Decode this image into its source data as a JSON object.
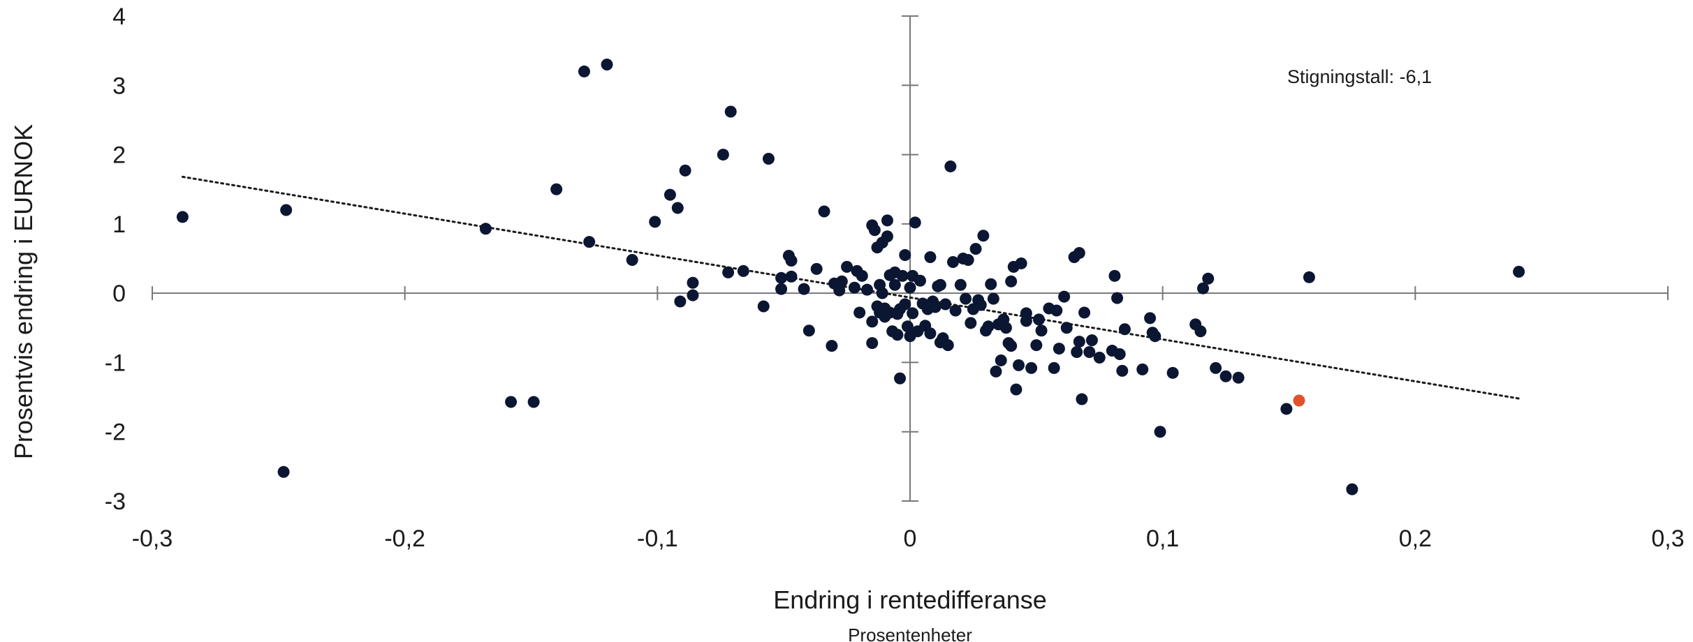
{
  "chart_data": {
    "type": "scatter",
    "title": "",
    "xlabel": "Endring i rentedifferanse",
    "xlabel_sub": "Prosentenheter",
    "ylabel": "Prosentvis endring i EURNOK",
    "xlim": [
      -0.3,
      0.3
    ],
    "ylim": [
      -3,
      4
    ],
    "xticks": [
      -0.3,
      -0.2,
      -0.1,
      0,
      0.1,
      0.2,
      0.3
    ],
    "xtick_labels": [
      "-0,3",
      "-0,2",
      "-0,1",
      "0",
      "0,1",
      "0,2",
      "0,3"
    ],
    "yticks": [
      -3,
      -2,
      -1,
      0,
      1,
      2,
      3,
      4
    ],
    "ytick_labels": [
      "-3",
      "-2",
      "-1",
      "0",
      "1",
      "2",
      "3",
      "4"
    ],
    "grid": false,
    "annotation": "Stigningstall: -6,1",
    "colors": {
      "points": "#0b1633",
      "highlight": "#e0532a",
      "axis": "#777777",
      "trend": "#1a1a1a"
    },
    "trendline": {
      "style": "dotted",
      "x": [
        -0.288,
        0.241
      ],
      "y": [
        1.68,
        -1.52
      ]
    },
    "highlight_point": {
      "x": 0.154,
      "y": -1.55
    },
    "points": [
      {
        "x": -0.288,
        "y": 1.1
      },
      {
        "x": -0.247,
        "y": 1.2
      },
      {
        "x": -0.248,
        "y": -2.58
      },
      {
        "x": -0.168,
        "y": 0.93
      },
      {
        "x": -0.158,
        "y": -1.57
      },
      {
        "x": -0.149,
        "y": -1.57
      },
      {
        "x": -0.14,
        "y": 1.5
      },
      {
        "x": -0.129,
        "y": 3.2
      },
      {
        "x": -0.127,
        "y": 0.74
      },
      {
        "x": -0.12,
        "y": 3.3
      },
      {
        "x": -0.11,
        "y": 0.48
      },
      {
        "x": -0.101,
        "y": 1.03
      },
      {
        "x": -0.095,
        "y": 1.42
      },
      {
        "x": -0.092,
        "y": 1.23
      },
      {
        "x": -0.091,
        "y": -0.12
      },
      {
        "x": -0.089,
        "y": 1.77
      },
      {
        "x": -0.086,
        "y": 0.15
      },
      {
        "x": -0.086,
        "y": -0.03
      },
      {
        "x": -0.074,
        "y": 2.0
      },
      {
        "x": -0.072,
        "y": 0.3
      },
      {
        "x": -0.071,
        "y": 2.62
      },
      {
        "x": -0.066,
        "y": 0.32
      },
      {
        "x": -0.058,
        "y": -0.19
      },
      {
        "x": -0.056,
        "y": 1.94
      },
      {
        "x": -0.051,
        "y": 0.22
      },
      {
        "x": -0.051,
        "y": 0.06
      },
      {
        "x": -0.048,
        "y": 0.54
      },
      {
        "x": -0.047,
        "y": 0.47
      },
      {
        "x": -0.047,
        "y": 0.24
      },
      {
        "x": -0.042,
        "y": 0.06
      },
      {
        "x": -0.04,
        "y": -0.54
      },
      {
        "x": -0.037,
        "y": 0.35
      },
      {
        "x": -0.034,
        "y": 1.18
      },
      {
        "x": -0.031,
        "y": -0.76
      },
      {
        "x": -0.03,
        "y": 0.14
      },
      {
        "x": -0.028,
        "y": 0.04
      },
      {
        "x": -0.027,
        "y": 0.17
      },
      {
        "x": -0.025,
        "y": 0.38
      },
      {
        "x": -0.022,
        "y": 0.08
      },
      {
        "x": -0.021,
        "y": 0.32
      },
      {
        "x": -0.02,
        "y": -0.28
      },
      {
        "x": -0.019,
        "y": 0.25
      },
      {
        "x": -0.017,
        "y": 0.05
      },
      {
        "x": -0.015,
        "y": 0.98
      },
      {
        "x": -0.015,
        "y": -0.72
      },
      {
        "x": -0.015,
        "y": -0.41
      },
      {
        "x": -0.014,
        "y": 0.91
      },
      {
        "x": -0.013,
        "y": 0.66
      },
      {
        "x": -0.013,
        "y": -0.19
      },
      {
        "x": -0.012,
        "y": 0.12
      },
      {
        "x": -0.012,
        "y": -0.28
      },
      {
        "x": -0.011,
        "y": 0.73
      },
      {
        "x": -0.011,
        "y": 0.0
      },
      {
        "x": -0.01,
        "y": -0.34
      },
      {
        "x": -0.01,
        "y": -0.22
      },
      {
        "x": -0.009,
        "y": 0.82
      },
      {
        "x": -0.009,
        "y": 1.05
      },
      {
        "x": -0.008,
        "y": 0.26
      },
      {
        "x": -0.008,
        "y": -0.28
      },
      {
        "x": -0.007,
        "y": -0.55
      },
      {
        "x": -0.006,
        "y": 0.3
      },
      {
        "x": -0.006,
        "y": 0.12
      },
      {
        "x": -0.005,
        "y": -0.3
      },
      {
        "x": -0.005,
        "y": -0.6
      },
      {
        "x": -0.004,
        "y": -1.23
      },
      {
        "x": -0.004,
        "y": -0.23
      },
      {
        "x": -0.003,
        "y": 0.25
      },
      {
        "x": -0.002,
        "y": -0.16
      },
      {
        "x": -0.002,
        "y": 0.55
      },
      {
        "x": -0.001,
        "y": -0.48
      },
      {
        "x": 0.0,
        "y": 0.08
      },
      {
        "x": 0.0,
        "y": -0.62
      },
      {
        "x": 0.001,
        "y": -0.29
      },
      {
        "x": 0.001,
        "y": 0.25
      },
      {
        "x": 0.002,
        "y": 1.02
      },
      {
        "x": 0.003,
        "y": -0.55
      },
      {
        "x": 0.004,
        "y": 0.18
      },
      {
        "x": 0.005,
        "y": -0.15
      },
      {
        "x": 0.006,
        "y": -0.47
      },
      {
        "x": 0.007,
        "y": -0.23
      },
      {
        "x": 0.008,
        "y": 0.52
      },
      {
        "x": 0.008,
        "y": -0.58
      },
      {
        "x": 0.009,
        "y": -0.12
      },
      {
        "x": 0.01,
        "y": -0.2
      },
      {
        "x": 0.011,
        "y": 0.1
      },
      {
        "x": 0.012,
        "y": 0.12
      },
      {
        "x": 0.012,
        "y": -0.71
      },
      {
        "x": 0.013,
        "y": -0.65
      },
      {
        "x": 0.014,
        "y": -0.16
      },
      {
        "x": 0.015,
        "y": -0.75
      },
      {
        "x": 0.016,
        "y": 1.83
      },
      {
        "x": 0.017,
        "y": 0.45
      },
      {
        "x": 0.018,
        "y": -0.25
      },
      {
        "x": 0.02,
        "y": 0.12
      },
      {
        "x": 0.021,
        "y": 0.5
      },
      {
        "x": 0.022,
        "y": -0.08
      },
      {
        "x": 0.023,
        "y": 0.48
      },
      {
        "x": 0.024,
        "y": -0.43
      },
      {
        "x": 0.025,
        "y": -0.23
      },
      {
        "x": 0.026,
        "y": 0.64
      },
      {
        "x": 0.027,
        "y": -0.1
      },
      {
        "x": 0.028,
        "y": -0.17
      },
      {
        "x": 0.029,
        "y": 0.83
      },
      {
        "x": 0.03,
        "y": -0.54
      },
      {
        "x": 0.031,
        "y": -0.48
      },
      {
        "x": 0.032,
        "y": 0.13
      },
      {
        "x": 0.033,
        "y": -0.08
      },
      {
        "x": 0.034,
        "y": -1.13
      },
      {
        "x": 0.035,
        "y": -0.45
      },
      {
        "x": 0.036,
        "y": -0.97
      },
      {
        "x": 0.037,
        "y": -0.38
      },
      {
        "x": 0.038,
        "y": -0.5
      },
      {
        "x": 0.039,
        "y": -0.72
      },
      {
        "x": 0.04,
        "y": -0.76
      },
      {
        "x": 0.04,
        "y": 0.17
      },
      {
        "x": 0.041,
        "y": 0.38
      },
      {
        "x": 0.042,
        "y": -1.39
      },
      {
        "x": 0.043,
        "y": -1.04
      },
      {
        "x": 0.044,
        "y": 0.43
      },
      {
        "x": 0.046,
        "y": -0.29
      },
      {
        "x": 0.046,
        "y": -0.4
      },
      {
        "x": 0.048,
        "y": -1.08
      },
      {
        "x": 0.05,
        "y": -0.75
      },
      {
        "x": 0.051,
        "y": -0.38
      },
      {
        "x": 0.052,
        "y": -0.54
      },
      {
        "x": 0.055,
        "y": -0.22
      },
      {
        "x": 0.057,
        "y": -1.08
      },
      {
        "x": 0.058,
        "y": -0.25
      },
      {
        "x": 0.059,
        "y": -0.8
      },
      {
        "x": 0.061,
        "y": -0.05
      },
      {
        "x": 0.062,
        "y": -0.5
      },
      {
        "x": 0.065,
        "y": 0.52
      },
      {
        "x": 0.066,
        "y": -0.85
      },
      {
        "x": 0.067,
        "y": 0.58
      },
      {
        "x": 0.067,
        "y": -0.7
      },
      {
        "x": 0.068,
        "y": -1.53
      },
      {
        "x": 0.069,
        "y": -0.28
      },
      {
        "x": 0.071,
        "y": -0.85
      },
      {
        "x": 0.072,
        "y": -0.68
      },
      {
        "x": 0.075,
        "y": -0.93
      },
      {
        "x": 0.08,
        "y": -0.83
      },
      {
        "x": 0.081,
        "y": 0.25
      },
      {
        "x": 0.082,
        "y": -0.07
      },
      {
        "x": 0.083,
        "y": -0.88
      },
      {
        "x": 0.084,
        "y": -1.12
      },
      {
        "x": 0.085,
        "y": -0.52
      },
      {
        "x": 0.092,
        "y": -1.1
      },
      {
        "x": 0.095,
        "y": -0.36
      },
      {
        "x": 0.096,
        "y": -0.57
      },
      {
        "x": 0.097,
        "y": -0.62
      },
      {
        "x": 0.099,
        "y": -2.0
      },
      {
        "x": 0.104,
        "y": -1.15
      },
      {
        "x": 0.113,
        "y": -0.45
      },
      {
        "x": 0.115,
        "y": -0.55
      },
      {
        "x": 0.116,
        "y": 0.07
      },
      {
        "x": 0.118,
        "y": 0.21
      },
      {
        "x": 0.121,
        "y": -1.08
      },
      {
        "x": 0.125,
        "y": -1.2
      },
      {
        "x": 0.13,
        "y": -1.22
      },
      {
        "x": 0.149,
        "y": -1.67
      },
      {
        "x": 0.158,
        "y": 0.23
      },
      {
        "x": 0.175,
        "y": -2.83
      },
      {
        "x": 0.241,
        "y": 0.31
      }
    ]
  }
}
